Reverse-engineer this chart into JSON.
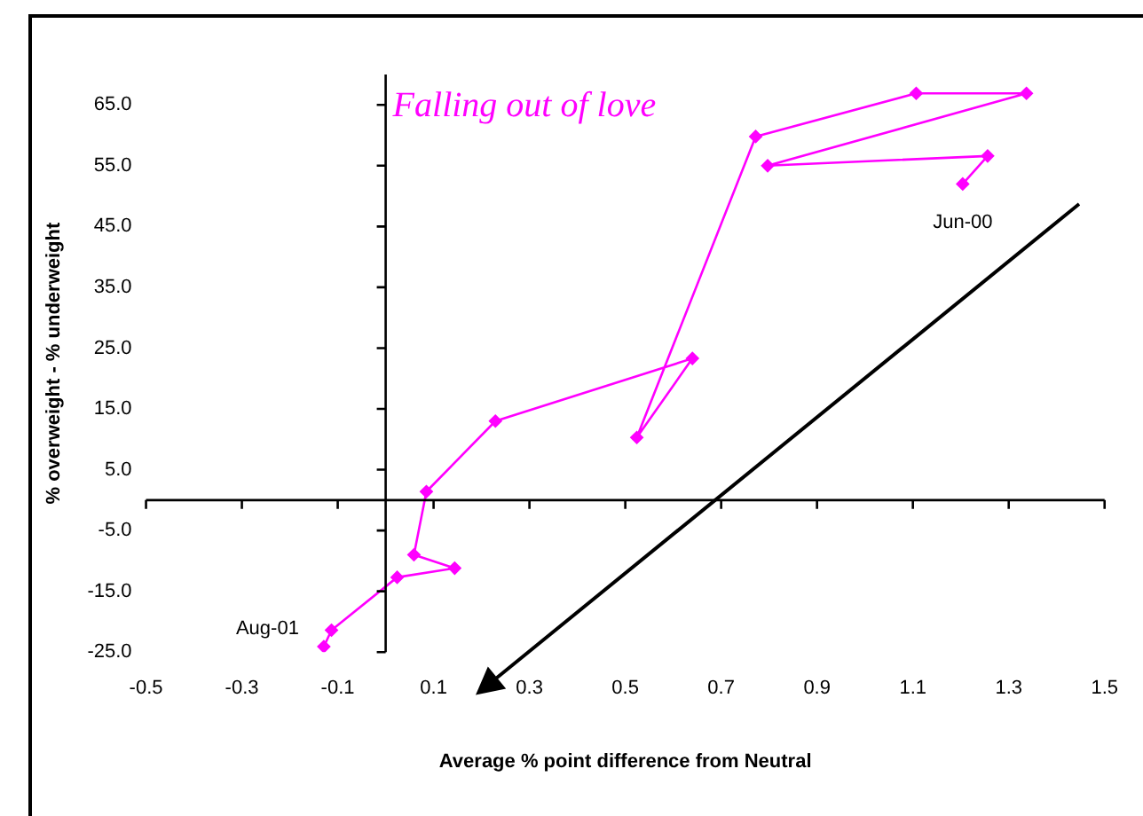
{
  "chart_data": {
    "type": "line",
    "xlabel": "Average % point difference from Neutral",
    "ylabel": "% overweight - % underweight",
    "x": [
      1.204,
      1.256,
      0.797,
      1.337,
      1.107,
      0.772,
      0.524,
      0.64,
      0.229,
      0.085,
      0.059,
      0.144,
      0.024,
      -0.113,
      -0.129
    ],
    "series": [
      {
        "color": "#ff00ff",
        "values": [
          52.0,
          56.6,
          55.0,
          66.9,
          66.9,
          59.8,
          10.3,
          23.3,
          13.0,
          1.4,
          -9.0,
          -11.2,
          -12.7,
          -21.4,
          -24.1
        ]
      }
    ],
    "xlim": [
      -0.5,
      1.5
    ],
    "xticks": [
      -0.5,
      -0.3,
      -0.1,
      0.1,
      0.3,
      0.5,
      0.7,
      0.9,
      1.1,
      1.3,
      1.5
    ],
    "ylim": [
      -25,
      70
    ],
    "yticks": [
      {
        "value": -25,
        "label": "-25.0"
      },
      {
        "value": -15,
        "label": "-15.0"
      },
      {
        "value": -5,
        "label": "-5.0"
      },
      {
        "value": 5,
        "label": "5.0"
      },
      {
        "value": 15,
        "label": "15.0"
      },
      {
        "value": 25,
        "label": "25.0"
      },
      {
        "value": 35,
        "label": "35.0"
      },
      {
        "value": 45,
        "label": "45.0"
      },
      {
        "value": 55,
        "label": "55.0"
      },
      {
        "value": 65,
        "label": "65.0"
      }
    ],
    "annotations": [
      "Falling out of love",
      {
        "text": "Jun-00",
        "x": 1.204,
        "y": 52.0
      },
      {
        "text": "Aug-01",
        "x": -0.129,
        "y": -24.1
      }
    ],
    "marker": "diamond",
    "grid": false,
    "legend": false
  }
}
